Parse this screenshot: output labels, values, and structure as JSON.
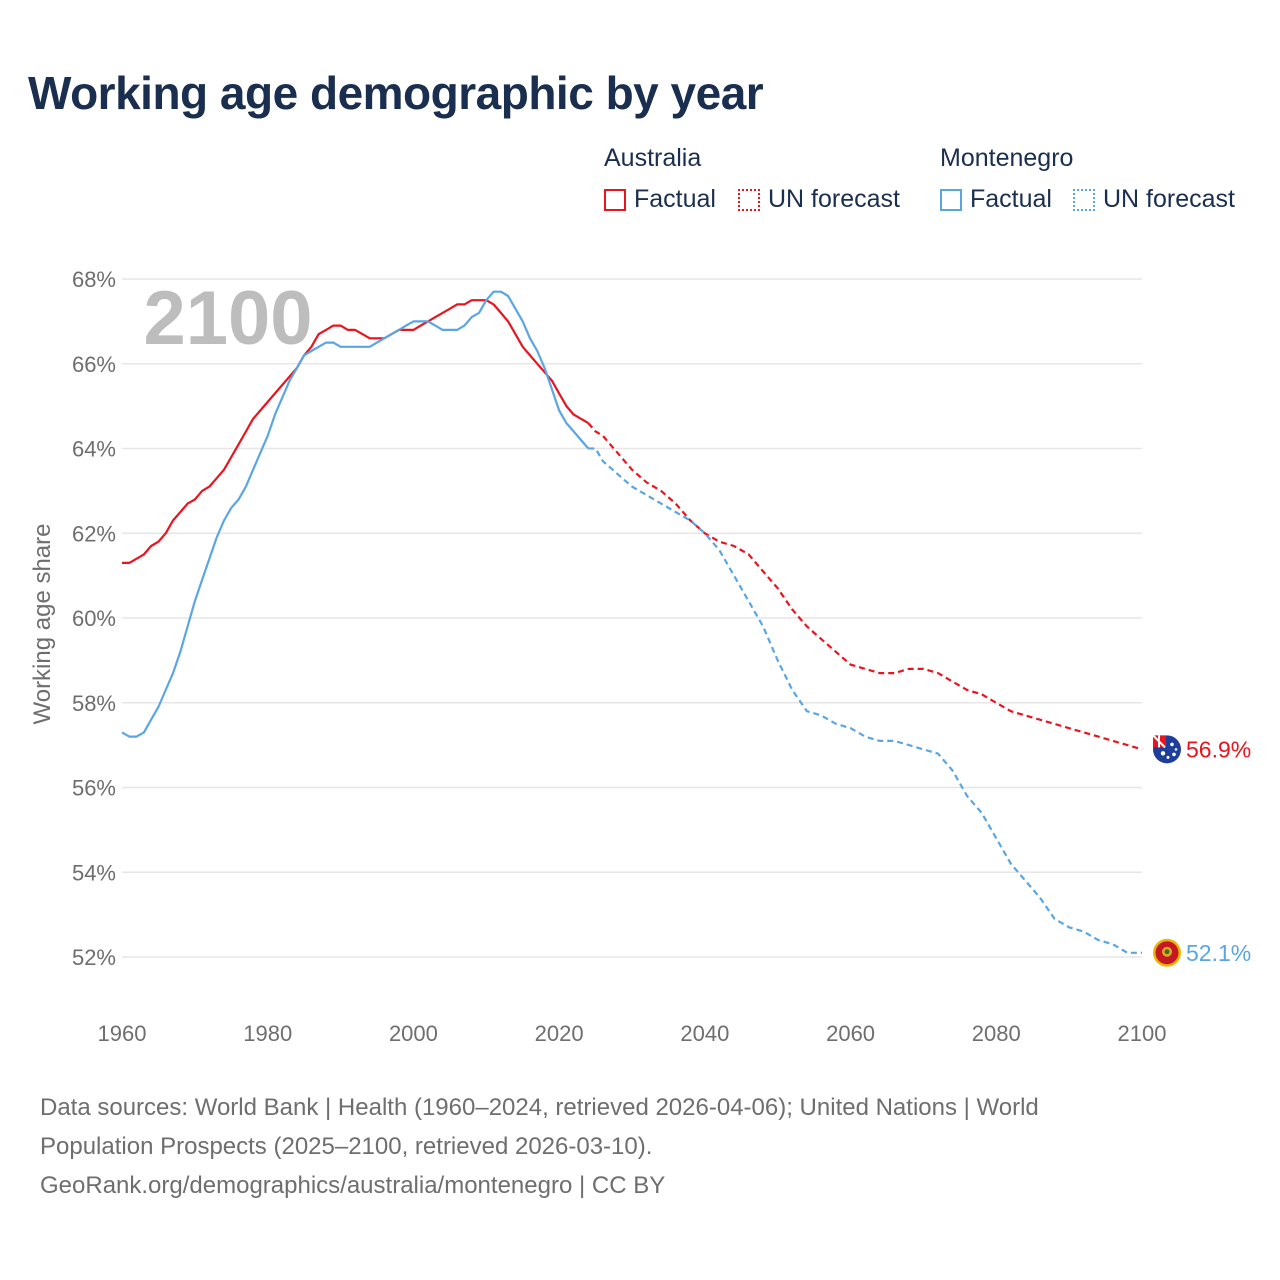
{
  "title": "Working age demographic by year",
  "legend": {
    "groups": [
      {
        "label": "Australia",
        "factual": "Factual",
        "forecast": "UN forecast",
        "color": "#e8141e"
      },
      {
        "label": "Montenegro",
        "factual": "Factual",
        "forecast": "UN forecast",
        "color": "#5aa6e4"
      }
    ]
  },
  "year_overlay": "2100",
  "source": {
    "line1": "Data sources: World Bank | Health (1960–2024, retrieved 2026-04-06); United Nations | World",
    "line2": "Population Prospects (2025–2100, retrieved 2026-03-10).",
    "line3": "GeoRank.org/demographics/australia/montenegro | CC BY"
  },
  "chart_data": {
    "type": "line",
    "title": "Working age demographic by year",
    "xlabel": "",
    "ylabel": "Working age share",
    "xlim": [
      1960,
      2100
    ],
    "ylim": [
      51,
      68.3
    ],
    "x_ticks": [
      "1960",
      "1980",
      "2000",
      "2020",
      "2040",
      "2060",
      "2080",
      "2100"
    ],
    "y_ticks": [
      "52%",
      "54%",
      "56%",
      "58%",
      "60%",
      "62%",
      "64%",
      "66%",
      "68%"
    ],
    "y_tick_values": [
      52,
      54,
      56,
      58,
      60,
      62,
      64,
      66,
      68
    ],
    "factual_end_year": 2024,
    "series": [
      {
        "name": "Australia",
        "color": "#e8141e",
        "end_label": "56.9%",
        "flag": "australia-flag-icon",
        "points": [
          [
            1960,
            61.3
          ],
          [
            1961,
            61.3
          ],
          [
            1962,
            61.4
          ],
          [
            1963,
            61.5
          ],
          [
            1964,
            61.7
          ],
          [
            1965,
            61.8
          ],
          [
            1966,
            62.0
          ],
          [
            1967,
            62.3
          ],
          [
            1968,
            62.5
          ],
          [
            1969,
            62.7
          ],
          [
            1970,
            62.8
          ],
          [
            1971,
            63.0
          ],
          [
            1972,
            63.1
          ],
          [
            1973,
            63.3
          ],
          [
            1974,
            63.5
          ],
          [
            1975,
            63.8
          ],
          [
            1976,
            64.1
          ],
          [
            1977,
            64.4
          ],
          [
            1978,
            64.7
          ],
          [
            1979,
            64.9
          ],
          [
            1980,
            65.1
          ],
          [
            1981,
            65.3
          ],
          [
            1982,
            65.5
          ],
          [
            1983,
            65.7
          ],
          [
            1984,
            65.9
          ],
          [
            1985,
            66.2
          ],
          [
            1986,
            66.4
          ],
          [
            1987,
            66.7
          ],
          [
            1988,
            66.8
          ],
          [
            1989,
            66.9
          ],
          [
            1990,
            66.9
          ],
          [
            1991,
            66.8
          ],
          [
            1992,
            66.8
          ],
          [
            1993,
            66.7
          ],
          [
            1994,
            66.6
          ],
          [
            1995,
            66.6
          ],
          [
            1996,
            66.6
          ],
          [
            1997,
            66.7
          ],
          [
            1998,
            66.8
          ],
          [
            1999,
            66.8
          ],
          [
            2000,
            66.8
          ],
          [
            2001,
            66.9
          ],
          [
            2002,
            67.0
          ],
          [
            2003,
            67.1
          ],
          [
            2004,
            67.2
          ],
          [
            2005,
            67.3
          ],
          [
            2006,
            67.4
          ],
          [
            2007,
            67.4
          ],
          [
            2008,
            67.5
          ],
          [
            2009,
            67.5
          ],
          [
            2010,
            67.5
          ],
          [
            2011,
            67.4
          ],
          [
            2012,
            67.2
          ],
          [
            2013,
            67.0
          ],
          [
            2014,
            66.7
          ],
          [
            2015,
            66.4
          ],
          [
            2016,
            66.2
          ],
          [
            2017,
            66.0
          ],
          [
            2018,
            65.8
          ],
          [
            2019,
            65.6
          ],
          [
            2020,
            65.3
          ],
          [
            2021,
            65.0
          ],
          [
            2022,
            64.8
          ],
          [
            2023,
            64.7
          ],
          [
            2024,
            64.6
          ],
          [
            2025,
            64.4
          ],
          [
            2026,
            64.3
          ],
          [
            2027,
            64.1
          ],
          [
            2028,
            63.9
          ],
          [
            2029,
            63.7
          ],
          [
            2030,
            63.5
          ],
          [
            2032,
            63.2
          ],
          [
            2034,
            63.0
          ],
          [
            2036,
            62.7
          ],
          [
            2038,
            62.3
          ],
          [
            2040,
            62.0
          ],
          [
            2042,
            61.8
          ],
          [
            2044,
            61.7
          ],
          [
            2046,
            61.5
          ],
          [
            2048,
            61.1
          ],
          [
            2050,
            60.7
          ],
          [
            2052,
            60.2
          ],
          [
            2054,
            59.8
          ],
          [
            2056,
            59.5
          ],
          [
            2058,
            59.2
          ],
          [
            2060,
            58.9
          ],
          [
            2062,
            58.8
          ],
          [
            2064,
            58.7
          ],
          [
            2066,
            58.7
          ],
          [
            2068,
            58.8
          ],
          [
            2070,
            58.8
          ],
          [
            2072,
            58.7
          ],
          [
            2074,
            58.5
          ],
          [
            2076,
            58.3
          ],
          [
            2078,
            58.2
          ],
          [
            2080,
            58.0
          ],
          [
            2082,
            57.8
          ],
          [
            2084,
            57.7
          ],
          [
            2086,
            57.6
          ],
          [
            2088,
            57.5
          ],
          [
            2090,
            57.4
          ],
          [
            2092,
            57.3
          ],
          [
            2094,
            57.2
          ],
          [
            2096,
            57.1
          ],
          [
            2098,
            57.0
          ],
          [
            2100,
            56.9
          ]
        ]
      },
      {
        "name": "Montenegro",
        "color": "#5aa6e4",
        "end_label": "52.1%",
        "flag": "montenegro-flag-icon",
        "points": [
          [
            1960,
            57.3
          ],
          [
            1961,
            57.2
          ],
          [
            1962,
            57.2
          ],
          [
            1963,
            57.3
          ],
          [
            1964,
            57.6
          ],
          [
            1965,
            57.9
          ],
          [
            1966,
            58.3
          ],
          [
            1967,
            58.7
          ],
          [
            1968,
            59.2
          ],
          [
            1969,
            59.8
          ],
          [
            1970,
            60.4
          ],
          [
            1971,
            60.9
          ],
          [
            1972,
            61.4
          ],
          [
            1973,
            61.9
          ],
          [
            1974,
            62.3
          ],
          [
            1975,
            62.6
          ],
          [
            1976,
            62.8
          ],
          [
            1977,
            63.1
          ],
          [
            1978,
            63.5
          ],
          [
            1979,
            63.9
          ],
          [
            1980,
            64.3
          ],
          [
            1981,
            64.8
          ],
          [
            1982,
            65.2
          ],
          [
            1983,
            65.6
          ],
          [
            1984,
            65.9
          ],
          [
            1985,
            66.2
          ],
          [
            1986,
            66.3
          ],
          [
            1987,
            66.4
          ],
          [
            1988,
            66.5
          ],
          [
            1989,
            66.5
          ],
          [
            1990,
            66.4
          ],
          [
            1991,
            66.4
          ],
          [
            1992,
            66.4
          ],
          [
            1993,
            66.4
          ],
          [
            1994,
            66.4
          ],
          [
            1995,
            66.5
          ],
          [
            1996,
            66.6
          ],
          [
            1997,
            66.7
          ],
          [
            1998,
            66.8
          ],
          [
            1999,
            66.9
          ],
          [
            2000,
            67.0
          ],
          [
            2001,
            67.0
          ],
          [
            2002,
            67.0
          ],
          [
            2003,
            66.9
          ],
          [
            2004,
            66.8
          ],
          [
            2005,
            66.8
          ],
          [
            2006,
            66.8
          ],
          [
            2007,
            66.9
          ],
          [
            2008,
            67.1
          ],
          [
            2009,
            67.2
          ],
          [
            2010,
            67.5
          ],
          [
            2011,
            67.7
          ],
          [
            2012,
            67.7
          ],
          [
            2013,
            67.6
          ],
          [
            2014,
            67.3
          ],
          [
            2015,
            67.0
          ],
          [
            2016,
            66.6
          ],
          [
            2017,
            66.3
          ],
          [
            2018,
            65.9
          ],
          [
            2019,
            65.4
          ],
          [
            2020,
            64.9
          ],
          [
            2021,
            64.6
          ],
          [
            2022,
            64.4
          ],
          [
            2023,
            64.2
          ],
          [
            2024,
            64.0
          ],
          [
            2025,
            64.0
          ],
          [
            2026,
            63.7
          ],
          [
            2028,
            63.4
          ],
          [
            2030,
            63.1
          ],
          [
            2032,
            62.9
          ],
          [
            2034,
            62.7
          ],
          [
            2036,
            62.5
          ],
          [
            2038,
            62.3
          ],
          [
            2040,
            62.0
          ],
          [
            2042,
            61.6
          ],
          [
            2044,
            61.0
          ],
          [
            2046,
            60.4
          ],
          [
            2048,
            59.8
          ],
          [
            2050,
            59.0
          ],
          [
            2052,
            58.3
          ],
          [
            2054,
            57.8
          ],
          [
            2056,
            57.7
          ],
          [
            2058,
            57.5
          ],
          [
            2060,
            57.4
          ],
          [
            2062,
            57.2
          ],
          [
            2064,
            57.1
          ],
          [
            2066,
            57.1
          ],
          [
            2068,
            57.0
          ],
          [
            2070,
            56.9
          ],
          [
            2072,
            56.8
          ],
          [
            2074,
            56.4
          ],
          [
            2076,
            55.8
          ],
          [
            2078,
            55.4
          ],
          [
            2080,
            54.8
          ],
          [
            2082,
            54.2
          ],
          [
            2084,
            53.8
          ],
          [
            2086,
            53.4
          ],
          [
            2088,
            52.9
          ],
          [
            2090,
            52.7
          ],
          [
            2092,
            52.6
          ],
          [
            2094,
            52.4
          ],
          [
            2096,
            52.3
          ],
          [
            2098,
            52.1
          ],
          [
            2100,
            52.1
          ]
        ]
      }
    ]
  }
}
